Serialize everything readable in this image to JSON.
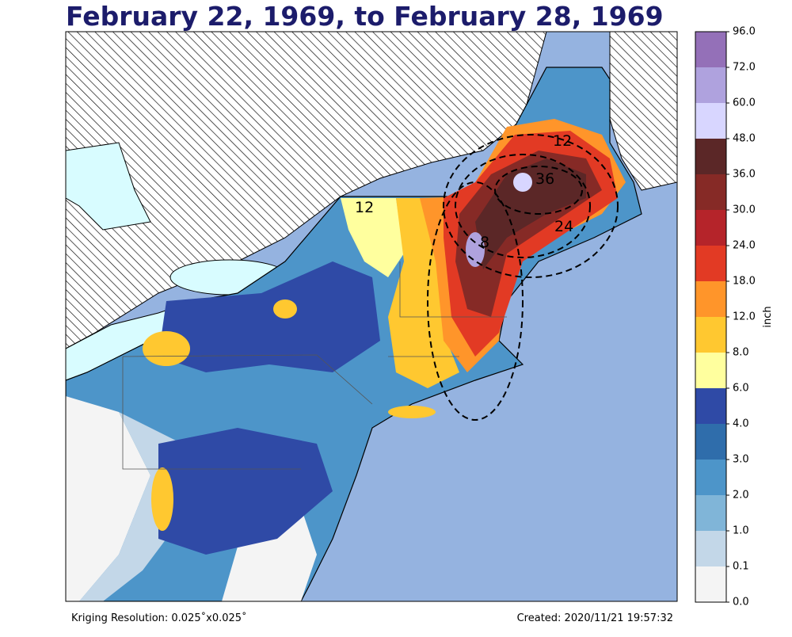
{
  "header": {
    "title": "February 22, 1969, to February 28, 1969"
  },
  "colorbar": {
    "label": "inch",
    "levels": [
      "0.0",
      "0.1",
      "1.0",
      "2.0",
      "3.0",
      "4.0",
      "6.0",
      "8.0",
      "12.0",
      "18.0",
      "24.0",
      "30.0",
      "36.0",
      "48.0",
      "60.0",
      "72.0",
      "96.0"
    ],
    "colors": [
      "#f4f4f4",
      "#c3d7e8",
      "#80b5d8",
      "#4d95c9",
      "#2f6dab",
      "#2f4aa6",
      "#ffff9e",
      "#ffc830",
      "#ff952a",
      "#e23a24",
      "#b5242a",
      "#862a26",
      "#5b2727",
      "#d8d6ff",
      "#afa2de",
      "#9470b8"
    ]
  },
  "map": {
    "contour_labels": [
      "12",
      "12",
      "36",
      "24",
      "8"
    ]
  },
  "footer": {
    "resolution": "Kriging Resolution: 0.025˚x0.025˚",
    "created": "Created: 2020/11/21 19:57:32"
  }
}
